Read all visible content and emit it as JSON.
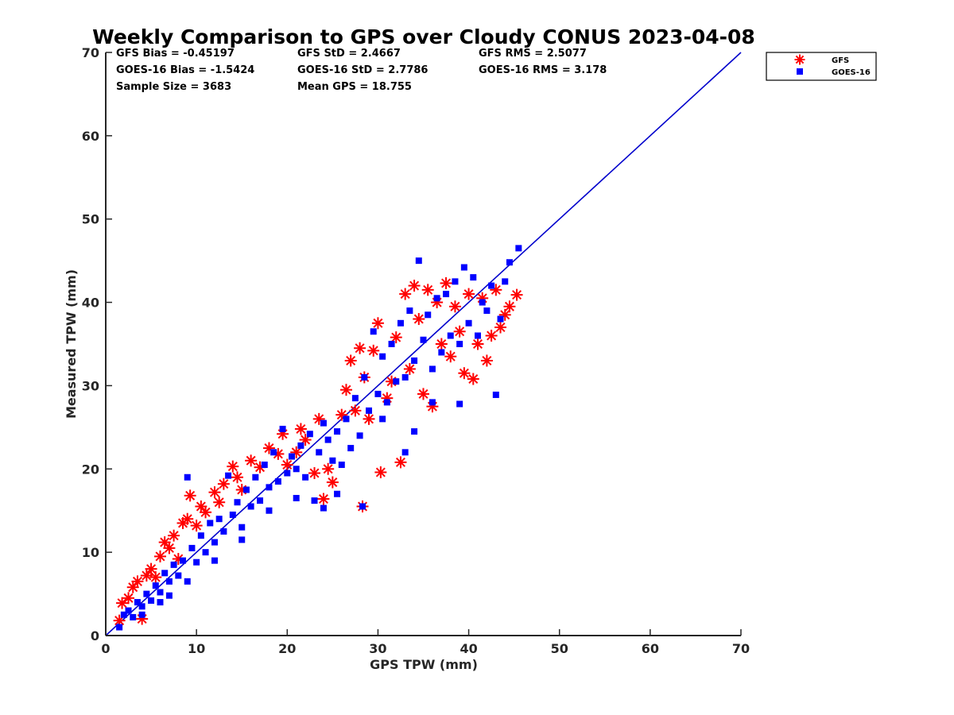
{
  "chart_data": {
    "type": "scatter",
    "title": "Weekly Comparison to GPS over Cloudy CONUS 2023-04-08",
    "xlabel": "GPS TPW (mm)",
    "ylabel": "Measured TPW (mm)",
    "xlim": [
      0,
      70
    ],
    "ylim": [
      0,
      70
    ],
    "xticks": [
      "0",
      "10",
      "20",
      "30",
      "40",
      "50",
      "60",
      "70"
    ],
    "yticks": [
      "0",
      "10",
      "20",
      "30",
      "40",
      "50",
      "60",
      "70"
    ],
    "grid": false,
    "legend_position": "outside-top-right",
    "stats": [
      [
        "GFS Bias = -0.45197",
        "GFS StD = 2.4667",
        "GFS RMS = 2.5077"
      ],
      [
        "GOES-16 Bias = -1.5424",
        "GOES-16 StD = 2.7786",
        "GOES-16 RMS = 3.178"
      ],
      [
        "Sample Size = 3683",
        "Mean GPS = 18.755",
        ""
      ]
    ],
    "reference_line": {
      "x": [
        0,
        70
      ],
      "y": [
        0,
        70
      ],
      "color": "#0000cc"
    },
    "series": [
      {
        "name": "GFS",
        "marker": "asterisk",
        "color": "#ff0000",
        "points": [
          [
            1.5,
            1.8
          ],
          [
            1.8,
            3.9
          ],
          [
            2.5,
            4.5
          ],
          [
            3,
            5.8
          ],
          [
            3.5,
            6.5
          ],
          [
            4,
            2.0
          ],
          [
            4.5,
            7.2
          ],
          [
            5,
            8.0
          ],
          [
            5.5,
            7.0
          ],
          [
            6,
            9.5
          ],
          [
            6.5,
            11.2
          ],
          [
            7,
            10.5
          ],
          [
            7.5,
            12.0
          ],
          [
            8,
            9.2
          ],
          [
            8.5,
            13.5
          ],
          [
            9,
            14.0
          ],
          [
            9.3,
            16.8
          ],
          [
            10,
            13.2
          ],
          [
            10.5,
            15.5
          ],
          [
            11,
            14.8
          ],
          [
            12,
            17.2
          ],
          [
            12.5,
            16.0
          ],
          [
            13,
            18.2
          ],
          [
            14,
            20.3
          ],
          [
            14.5,
            19.0
          ],
          [
            15,
            17.5
          ],
          [
            16,
            21.0
          ],
          [
            17,
            20.2
          ],
          [
            18,
            22.5
          ],
          [
            19,
            21.8
          ],
          [
            19.5,
            24.2
          ],
          [
            20,
            20.5
          ],
          [
            21,
            22.0
          ],
          [
            22,
            23.5
          ],
          [
            23,
            19.5
          ],
          [
            24,
            16.4
          ],
          [
            24.5,
            20.0
          ],
          [
            25,
            18.4
          ],
          [
            26,
            26.5
          ],
          [
            26.5,
            29.5
          ],
          [
            27,
            33.0
          ],
          [
            27.5,
            27.0
          ],
          [
            28,
            34.5
          ],
          [
            28.5,
            31.0
          ],
          [
            29,
            26.0
          ],
          [
            29.5,
            34.2
          ],
          [
            30,
            37.5
          ],
          [
            30.3,
            19.6
          ],
          [
            31,
            28.5
          ],
          [
            31.5,
            30.5
          ],
          [
            32,
            35.8
          ],
          [
            32.5,
            20.8
          ],
          [
            33,
            41.0
          ],
          [
            33.5,
            32.0
          ],
          [
            34,
            42.0
          ],
          [
            34.5,
            38.0
          ],
          [
            35,
            29.0
          ],
          [
            35.5,
            41.5
          ],
          [
            36,
            27.5
          ],
          [
            36.5,
            40.0
          ],
          [
            37,
            35.0
          ],
          [
            37.5,
            42.3
          ],
          [
            38,
            33.5
          ],
          [
            38.5,
            39.5
          ],
          [
            39,
            36.5
          ],
          [
            39.5,
            31.5
          ],
          [
            40,
            41.0
          ],
          [
            40.5,
            30.8
          ],
          [
            41,
            35.0
          ],
          [
            41.5,
            40.5
          ],
          [
            42,
            33.0
          ],
          [
            42.5,
            36.0
          ],
          [
            43,
            41.5
          ],
          [
            43.5,
            37.0
          ],
          [
            44,
            38.5
          ],
          [
            44.5,
            39.5
          ],
          [
            45.3,
            40.9
          ],
          [
            28.3,
            15.5
          ],
          [
            23.5,
            26.0
          ],
          [
            21.5,
            24.8
          ]
        ]
      },
      {
        "name": "GOES-16",
        "marker": "square",
        "color": "#0000ff",
        "points": [
          [
            1.5,
            1.0
          ],
          [
            2,
            2.5
          ],
          [
            2.5,
            3.0
          ],
          [
            3,
            2.2
          ],
          [
            3.5,
            4.0
          ],
          [
            4,
            3.5
          ],
          [
            4.5,
            5.0
          ],
          [
            5,
            4.2
          ],
          [
            5.5,
            6.0
          ],
          [
            6,
            5.2
          ],
          [
            6.5,
            7.5
          ],
          [
            7,
            6.5
          ],
          [
            7.5,
            8.5
          ],
          [
            8,
            7.2
          ],
          [
            8.5,
            9.0
          ],
          [
            9,
            19.0
          ],
          [
            9.5,
            10.5
          ],
          [
            10,
            8.8
          ],
          [
            10.5,
            12.0
          ],
          [
            11,
            10.0
          ],
          [
            11.5,
            13.5
          ],
          [
            12,
            11.2
          ],
          [
            12.5,
            14.0
          ],
          [
            13,
            12.5
          ],
          [
            13.5,
            19.2
          ],
          [
            14,
            14.5
          ],
          [
            14.5,
            16.0
          ],
          [
            15,
            13.0
          ],
          [
            15.5,
            17.5
          ],
          [
            16,
            15.5
          ],
          [
            16.5,
            19.0
          ],
          [
            17,
            16.2
          ],
          [
            17.5,
            20.5
          ],
          [
            18,
            17.8
          ],
          [
            18.5,
            22.0
          ],
          [
            19,
            18.5
          ],
          [
            19.5,
            24.8
          ],
          [
            20,
            19.5
          ],
          [
            20.5,
            21.5
          ],
          [
            21,
            20.0
          ],
          [
            21.5,
            22.8
          ],
          [
            22,
            19.0
          ],
          [
            22.5,
            24.2
          ],
          [
            23,
            16.2
          ],
          [
            23.5,
            22.0
          ],
          [
            24,
            15.3
          ],
          [
            24.5,
            23.5
          ],
          [
            25,
            21.0
          ],
          [
            25.5,
            24.5
          ],
          [
            26,
            20.5
          ],
          [
            26.5,
            26.0
          ],
          [
            27,
            22.5
          ],
          [
            27.5,
            28.5
          ],
          [
            28,
            24.0
          ],
          [
            28.5,
            31.0
          ],
          [
            29,
            27.0
          ],
          [
            29.5,
            36.5
          ],
          [
            30,
            29.0
          ],
          [
            30.5,
            33.5
          ],
          [
            31,
            28.0
          ],
          [
            31.5,
            35.0
          ],
          [
            32,
            30.5
          ],
          [
            32.5,
            37.5
          ],
          [
            33,
            31.0
          ],
          [
            33.5,
            39.0
          ],
          [
            34,
            33.0
          ],
          [
            34.5,
            45.0
          ],
          [
            35,
            35.5
          ],
          [
            35.5,
            38.5
          ],
          [
            36,
            32.0
          ],
          [
            36.5,
            40.5
          ],
          [
            37,
            34.0
          ],
          [
            37.5,
            41.0
          ],
          [
            38,
            36.0
          ],
          [
            38.5,
            42.5
          ],
          [
            39,
            35.0
          ],
          [
            39.5,
            44.2
          ],
          [
            40,
            37.5
          ],
          [
            40.5,
            43.0
          ],
          [
            41,
            36.0
          ],
          [
            41.5,
            40.0
          ],
          [
            42,
            39.0
          ],
          [
            42.5,
            42.0
          ],
          [
            43,
            28.9
          ],
          [
            43.5,
            38.0
          ],
          [
            44,
            42.5
          ],
          [
            44.5,
            44.8
          ],
          [
            45.5,
            46.5
          ],
          [
            28.3,
            15.5
          ],
          [
            33,
            22.0
          ],
          [
            34,
            24.5
          ],
          [
            36,
            28.0
          ],
          [
            39,
            27.8
          ],
          [
            30.5,
            26.0
          ],
          [
            25.5,
            17.0
          ],
          [
            24,
            25.5
          ],
          [
            21,
            16.5
          ],
          [
            18,
            15.0
          ],
          [
            15,
            11.5
          ],
          [
            12,
            9.0
          ],
          [
            9,
            6.5
          ],
          [
            6,
            4.0
          ],
          [
            4,
            2.5
          ],
          [
            7,
            4.8
          ]
        ]
      }
    ]
  }
}
